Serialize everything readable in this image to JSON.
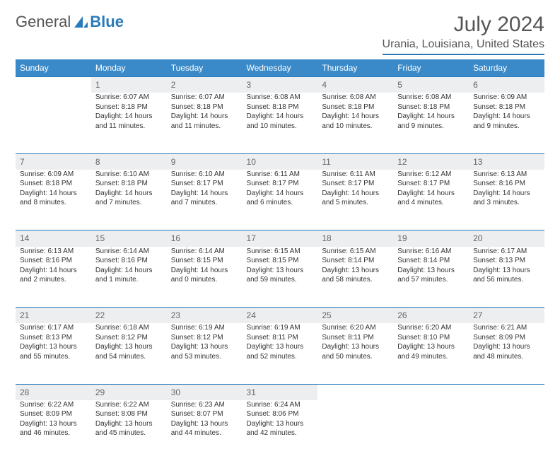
{
  "brand": {
    "part1": "General",
    "part2": "Blue"
  },
  "title": "July 2024",
  "location": "Urania, Louisiana, United States",
  "colors": {
    "header_bg": "#3a8ac9",
    "accent": "#2a7ab9",
    "daynum_bg": "#eceef0",
    "text": "#333333",
    "muted": "#666666",
    "page_bg": "#ffffff"
  },
  "typography": {
    "base_family": "Arial",
    "month_title_size_pt": 22,
    "location_size_pt": 12,
    "weekday_size_pt": 9,
    "cell_size_pt": 7.5
  },
  "calendar": {
    "weekdays": [
      "Sunday",
      "Monday",
      "Tuesday",
      "Wednesday",
      "Thursday",
      "Friday",
      "Saturday"
    ],
    "first_weekday_index": 1,
    "days": [
      {
        "n": 1,
        "sunrise": "6:07 AM",
        "sunset": "8:18 PM",
        "daylight": "14 hours and 11 minutes."
      },
      {
        "n": 2,
        "sunrise": "6:07 AM",
        "sunset": "8:18 PM",
        "daylight": "14 hours and 11 minutes."
      },
      {
        "n": 3,
        "sunrise": "6:08 AM",
        "sunset": "8:18 PM",
        "daylight": "14 hours and 10 minutes."
      },
      {
        "n": 4,
        "sunrise": "6:08 AM",
        "sunset": "8:18 PM",
        "daylight": "14 hours and 10 minutes."
      },
      {
        "n": 5,
        "sunrise": "6:08 AM",
        "sunset": "8:18 PM",
        "daylight": "14 hours and 9 minutes."
      },
      {
        "n": 6,
        "sunrise": "6:09 AM",
        "sunset": "8:18 PM",
        "daylight": "14 hours and 9 minutes."
      },
      {
        "n": 7,
        "sunrise": "6:09 AM",
        "sunset": "8:18 PM",
        "daylight": "14 hours and 8 minutes."
      },
      {
        "n": 8,
        "sunrise": "6:10 AM",
        "sunset": "8:18 PM",
        "daylight": "14 hours and 7 minutes."
      },
      {
        "n": 9,
        "sunrise": "6:10 AM",
        "sunset": "8:17 PM",
        "daylight": "14 hours and 7 minutes."
      },
      {
        "n": 10,
        "sunrise": "6:11 AM",
        "sunset": "8:17 PM",
        "daylight": "14 hours and 6 minutes."
      },
      {
        "n": 11,
        "sunrise": "6:11 AM",
        "sunset": "8:17 PM",
        "daylight": "14 hours and 5 minutes."
      },
      {
        "n": 12,
        "sunrise": "6:12 AM",
        "sunset": "8:17 PM",
        "daylight": "14 hours and 4 minutes."
      },
      {
        "n": 13,
        "sunrise": "6:13 AM",
        "sunset": "8:16 PM",
        "daylight": "14 hours and 3 minutes."
      },
      {
        "n": 14,
        "sunrise": "6:13 AM",
        "sunset": "8:16 PM",
        "daylight": "14 hours and 2 minutes."
      },
      {
        "n": 15,
        "sunrise": "6:14 AM",
        "sunset": "8:16 PM",
        "daylight": "14 hours and 1 minute."
      },
      {
        "n": 16,
        "sunrise": "6:14 AM",
        "sunset": "8:15 PM",
        "daylight": "14 hours and 0 minutes."
      },
      {
        "n": 17,
        "sunrise": "6:15 AM",
        "sunset": "8:15 PM",
        "daylight": "13 hours and 59 minutes."
      },
      {
        "n": 18,
        "sunrise": "6:15 AM",
        "sunset": "8:14 PM",
        "daylight": "13 hours and 58 minutes."
      },
      {
        "n": 19,
        "sunrise": "6:16 AM",
        "sunset": "8:14 PM",
        "daylight": "13 hours and 57 minutes."
      },
      {
        "n": 20,
        "sunrise": "6:17 AM",
        "sunset": "8:13 PM",
        "daylight": "13 hours and 56 minutes."
      },
      {
        "n": 21,
        "sunrise": "6:17 AM",
        "sunset": "8:13 PM",
        "daylight": "13 hours and 55 minutes."
      },
      {
        "n": 22,
        "sunrise": "6:18 AM",
        "sunset": "8:12 PM",
        "daylight": "13 hours and 54 minutes."
      },
      {
        "n": 23,
        "sunrise": "6:19 AM",
        "sunset": "8:12 PM",
        "daylight": "13 hours and 53 minutes."
      },
      {
        "n": 24,
        "sunrise": "6:19 AM",
        "sunset": "8:11 PM",
        "daylight": "13 hours and 52 minutes."
      },
      {
        "n": 25,
        "sunrise": "6:20 AM",
        "sunset": "8:11 PM",
        "daylight": "13 hours and 50 minutes."
      },
      {
        "n": 26,
        "sunrise": "6:20 AM",
        "sunset": "8:10 PM",
        "daylight": "13 hours and 49 minutes."
      },
      {
        "n": 27,
        "sunrise": "6:21 AM",
        "sunset": "8:09 PM",
        "daylight": "13 hours and 48 minutes."
      },
      {
        "n": 28,
        "sunrise": "6:22 AM",
        "sunset": "8:09 PM",
        "daylight": "13 hours and 46 minutes."
      },
      {
        "n": 29,
        "sunrise": "6:22 AM",
        "sunset": "8:08 PM",
        "daylight": "13 hours and 45 minutes."
      },
      {
        "n": 30,
        "sunrise": "6:23 AM",
        "sunset": "8:07 PM",
        "daylight": "13 hours and 44 minutes."
      },
      {
        "n": 31,
        "sunrise": "6:24 AM",
        "sunset": "8:06 PM",
        "daylight": "13 hours and 42 minutes."
      }
    ]
  }
}
